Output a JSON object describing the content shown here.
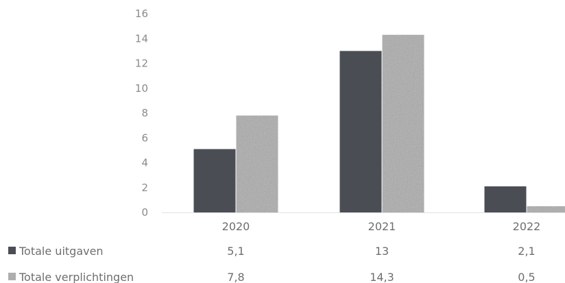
{
  "chart_data": {
    "type": "bar",
    "categories": [
      "2020",
      "2021",
      "2022"
    ],
    "ylim": [
      0,
      16
    ],
    "yticks": [
      0,
      2,
      4,
      6,
      8,
      10,
      12,
      14,
      16
    ],
    "grid": false,
    "legend": "data-table-below",
    "series": [
      {
        "name": "Totale uitgaven",
        "values": [
          5.1,
          13,
          2.1
        ],
        "labels": [
          "5,1",
          "13",
          "2,1"
        ],
        "color": "#4a4e54"
      },
      {
        "name": "Totale verplichtingen",
        "values": [
          7.8,
          14.3,
          0.5
        ],
        "labels": [
          "7,8",
          "14,3",
          "0,5"
        ],
        "color": "#a9a9a9"
      }
    ]
  }
}
